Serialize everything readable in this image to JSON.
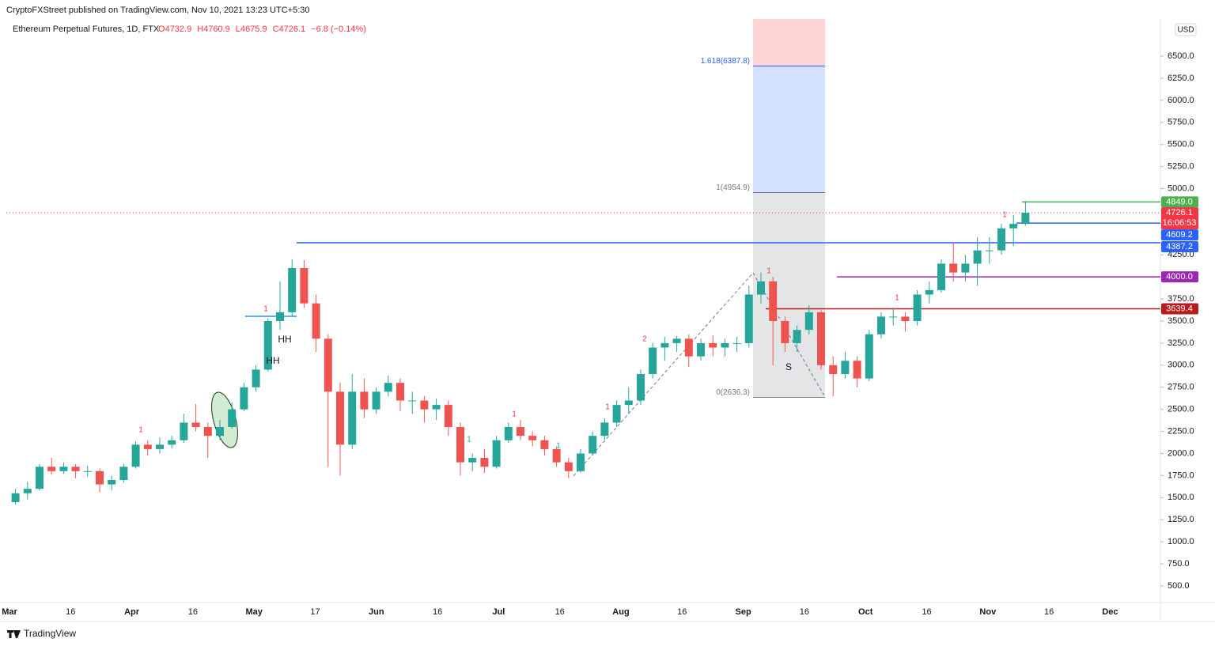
{
  "header": {
    "attribution": "CryptoFXStreet published on TradingView.com, Nov 10, 2021 13:23 UTC+5:30",
    "symbol": "Ethereum Perpetual Futures, 1D, FTX",
    "ohlc": [
      "O4732.9",
      "H4760.9",
      "L4675.9",
      "C4726.1",
      "−6.8 (−0.14%)"
    ],
    "currency": "USD"
  },
  "footer": {
    "brand": "TradingView"
  },
  "chart_data": {
    "type": "candlestick",
    "categories": [
      "Mar",
      "16",
      "Apr",
      "16",
      "May",
      "17",
      "Jun",
      "16",
      "Jul",
      "16",
      "Aug",
      "16",
      "Sep",
      "16",
      "Oct",
      "16",
      "Nov",
      "16",
      "Dec"
    ],
    "up_color": "#26a69a",
    "down_color": "#ef5350",
    "open": [
      1450,
      1550,
      1600,
      1850,
      1800,
      1850,
      1800,
      1800,
      1650,
      1700,
      1850,
      2100,
      2050,
      2100,
      2150,
      2350,
      2300,
      2200,
      2300,
      2500,
      2750,
      2950,
      3500,
      3600,
      4100,
      3700,
      3300,
      2700,
      2100,
      2700,
      2500,
      2700,
      2800,
      2600,
      2600,
      2500,
      2550,
      2300,
      1900,
      1950,
      1850,
      2150,
      2300,
      2200,
      2150,
      2050,
      1900,
      1800,
      2000,
      2200,
      2350,
      2550,
      2600,
      2900,
      3200,
      3250,
      3300,
      3100,
      3250,
      3200,
      3250,
      3250,
      3800,
      3950,
      3500,
      3250,
      3400,
      3600,
      3000,
      2900,
      3050,
      2850,
      3350,
      3550,
      3550,
      3500,
      3800,
      3850,
      4150,
      4050,
      4150,
      4300,
      4300,
      4550,
      4600
    ],
    "high": [
      1600,
      1680,
      1880,
      1950,
      1900,
      1880,
      1860,
      1830,
      1750,
      1880,
      2140,
      2150,
      2180,
      2200,
      2450,
      2560,
      2350,
      2380,
      2580,
      2800,
      3000,
      3530,
      3950,
      4200,
      4190,
      3800,
      3350,
      2800,
      2900,
      2850,
      2750,
      2880,
      2850,
      2700,
      2650,
      2620,
      2600,
      2350,
      2000,
      2050,
      2200,
      2350,
      2380,
      2250,
      2200,
      2080,
      1950,
      2050,
      2250,
      2400,
      2600,
      2750,
      2950,
      3250,
      3320,
      3330,
      3350,
      3300,
      3340,
      3300,
      3320,
      3900,
      4050,
      4000,
      3550,
      3450,
      3680,
      3620,
      3100,
      3150,
      3100,
      3400,
      3600,
      3650,
      3600,
      3850,
      3950,
      4200,
      4380,
      4250,
      4450,
      4450,
      4600,
      4700,
      4860
    ],
    "low": [
      1420,
      1480,
      1580,
      1760,
      1770,
      1720,
      1740,
      1560,
      1580,
      1670,
      1830,
      1980,
      2000,
      2060,
      2120,
      2250,
      1950,
      2150,
      2280,
      2480,
      2700,
      2930,
      3400,
      3550,
      3650,
      3150,
      1850,
      1750,
      2050,
      2400,
      2450,
      2650,
      2480,
      2450,
      2350,
      2380,
      2200,
      1750,
      1800,
      1780,
      1830,
      2120,
      2150,
      2080,
      1980,
      1850,
      1720,
      1780,
      1980,
      2150,
      2300,
      2450,
      2550,
      2850,
      3050,
      3150,
      2980,
      3050,
      3100,
      3100,
      3150,
      3200,
      3700,
      3000,
      3150,
      3150,
      3350,
      2950,
      2650,
      2850,
      2750,
      2820,
      3300,
      3450,
      3380,
      3450,
      3700,
      3820,
      3950,
      3950,
      3900,
      4150,
      4250,
      4350,
      4580
    ],
    "close": [
      1550,
      1600,
      1850,
      1800,
      1850,
      1800,
      1800,
      1650,
      1700,
      1850,
      2100,
      2050,
      2100,
      2150,
      2350,
      2300,
      2200,
      2300,
      2500,
      2750,
      2950,
      3500,
      3600,
      4100,
      3700,
      3300,
      2700,
      2100,
      2700,
      2500,
      2700,
      2800,
      2600,
      2600,
      2500,
      2550,
      2300,
      1900,
      1950,
      1850,
      2150,
      2300,
      2200,
      2150,
      2050,
      1900,
      1800,
      2000,
      2200,
      2350,
      2550,
      2600,
      2900,
      3200,
      3250,
      3300,
      3100,
      3250,
      3200,
      3250,
      3250,
      3800,
      3950,
      3500,
      3250,
      3400,
      3600,
      3000,
      2900,
      3050,
      2850,
      3350,
      3550,
      3550,
      3500,
      3800,
      3850,
      4150,
      4050,
      4150,
      4300,
      4300,
      4550,
      4600,
      4726.1
    ],
    "ylim": [
      312,
      6921
    ],
    "yticks": [
      {
        "value": 500,
        "label": "500.0"
      },
      {
        "value": 750,
        "label": "750.0"
      },
      {
        "value": 1000,
        "label": "1000.0"
      },
      {
        "value": 1250,
        "label": "1250.0"
      },
      {
        "value": 1500,
        "label": "1500.0"
      },
      {
        "value": 1750,
        "label": "1750.0"
      },
      {
        "value": 2000,
        "label": "2000.0"
      },
      {
        "value": 2250,
        "label": "2250.0"
      },
      {
        "value": 2500,
        "label": "2500.0"
      },
      {
        "value": 2750,
        "label": "2750.0"
      },
      {
        "value": 3000,
        "label": "3000.0"
      },
      {
        "value": 3250,
        "label": "3250.0"
      },
      {
        "value": 3500,
        "label": "3500.0"
      },
      {
        "value": 3750,
        "label": "3750.0"
      },
      {
        "value": 4000,
        "label": "4000.0"
      },
      {
        "value": 4250,
        "label": "4250.0"
      },
      {
        "value": 4500,
        "label": "4500.0"
      },
      {
        "value": 4750,
        "label": "4750.0"
      },
      {
        "value": 5000,
        "label": "5000.0"
      },
      {
        "value": 5250,
        "label": "5250.0"
      },
      {
        "value": 5500,
        "label": "5500.0"
      },
      {
        "value": 5750,
        "label": "5750.0"
      },
      {
        "value": 6000,
        "label": "6000.0"
      },
      {
        "value": 6250,
        "label": "6250.0"
      },
      {
        "value": 6500,
        "label": "6500.0"
      }
    ],
    "price_tags": [
      {
        "value": 4849.0,
        "label": "4849.0",
        "color": "#4caf50"
      },
      {
        "value": 4726.1,
        "label": "4726.1",
        "sublabel": "16:06:53",
        "color": "#f23645"
      },
      {
        "value": 4609.2,
        "label": "4609.2",
        "color": "#2962ff"
      },
      {
        "value": 4387.2,
        "label": "4387.2",
        "color": "#2962ff"
      },
      {
        "value": 4000.0,
        "label": "4000.0",
        "color": "#9c27b0"
      },
      {
        "value": 3639.4,
        "label": "3639.4",
        "color": "#b71c1c"
      }
    ],
    "fib_levels": [
      {
        "value": 6387.8,
        "label": "1.618(6387.8)",
        "color": "#2962ff"
      },
      {
        "value": 4954.9,
        "label": "1(4954.9)",
        "color": "#787b86"
      },
      {
        "value": 2636.3,
        "label": "0(2636.3)",
        "color": "#787b86"
      }
    ],
    "annotations": [
      "HH",
      "HH",
      "S",
      "1",
      "1",
      "1",
      "1",
      "1",
      "1",
      "1",
      "1",
      "1",
      "2"
    ]
  }
}
